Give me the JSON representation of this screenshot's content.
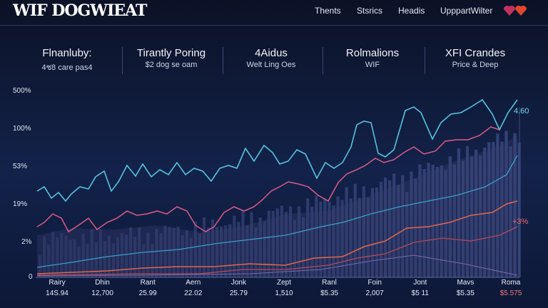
{
  "header": {
    "logo": "WIF DOGWIEAT",
    "nav": [
      "Thents",
      "Stsrics",
      "Headis",
      "UpppartWilter"
    ]
  },
  "stats": [
    {
      "title": "Flnanluby:",
      "subtitle": "4ช8 care pas4"
    },
    {
      "title": "Tirantly Poring",
      "subtitle": "$2 dog se oam"
    },
    {
      "title": "4Aidus",
      "subtitle": "Welt Ling Oes"
    },
    {
      "title": "Rolmalions",
      "subtitle": "WIF"
    },
    {
      "title": "XFI Crandes",
      "subtitle": "Price & Deep"
    }
  ],
  "chart": {
    "y_labels": [
      "500%",
      "100%",
      "53%",
      "19%",
      "2%",
      "0"
    ],
    "x_labels": [
      {
        "name": "Rairy",
        "value": "14S.94"
      },
      {
        "name": "Dhin",
        "value": "12,700"
      },
      {
        "name": "Rant",
        "value": "25.99"
      },
      {
        "name": "Aern",
        "value": "22.02"
      },
      {
        "name": "Jonk",
        "value": "25.79"
      },
      {
        "name": "Zept",
        "value": "1,510"
      },
      {
        "name": "Ranl",
        "value": "$5.35"
      },
      {
        "name": "Foin",
        "value": "2,007"
      },
      {
        "name": "Jont",
        "value": "$5 11"
      },
      {
        "name": "Mavs",
        "value": "$5.35"
      },
      {
        "name": "Roma",
        "value": "$5.575"
      }
    ],
    "annotations": [
      "4.60",
      "+3%"
    ]
  }
}
